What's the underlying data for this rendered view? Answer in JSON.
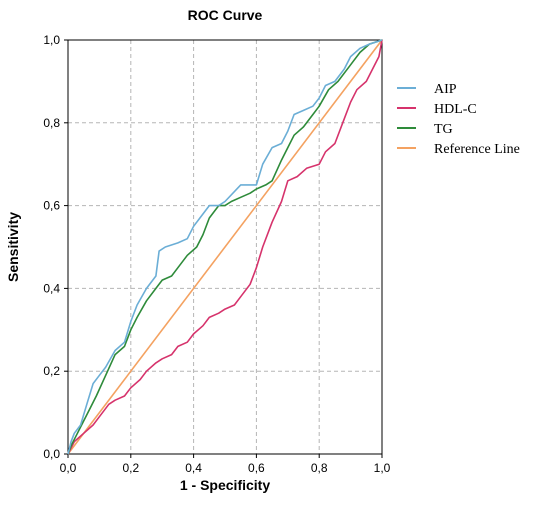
{
  "chart_data": {
    "type": "line",
    "title": "ROC Curve",
    "xlabel": "1 - Specificity",
    "ylabel": "Sensitivity",
    "xlim": [
      0,
      1
    ],
    "ylim": [
      0,
      1
    ],
    "x_ticks": [
      "0,0",
      "0,2",
      "0,4",
      "0,6",
      "0,8",
      "1,0"
    ],
    "y_ticks": [
      "0,0",
      "0,2",
      "0,4",
      "0,6",
      "0,8",
      "1,0"
    ],
    "grid": true,
    "legend_position": "right",
    "series": [
      {
        "name": "AIP",
        "color": "#6baed6",
        "points": [
          [
            0,
            0
          ],
          [
            0.01,
            0.03
          ],
          [
            0.02,
            0.05
          ],
          [
            0.04,
            0.07
          ],
          [
            0.06,
            0.12
          ],
          [
            0.08,
            0.17
          ],
          [
            0.1,
            0.19
          ],
          [
            0.12,
            0.21
          ],
          [
            0.15,
            0.25
          ],
          [
            0.18,
            0.27
          ],
          [
            0.2,
            0.32
          ],
          [
            0.22,
            0.36
          ],
          [
            0.25,
            0.4
          ],
          [
            0.28,
            0.43
          ],
          [
            0.29,
            0.49
          ],
          [
            0.31,
            0.5
          ],
          [
            0.35,
            0.51
          ],
          [
            0.38,
            0.52
          ],
          [
            0.4,
            0.55
          ],
          [
            0.42,
            0.57
          ],
          [
            0.45,
            0.6
          ],
          [
            0.48,
            0.6
          ],
          [
            0.5,
            0.61
          ],
          [
            0.55,
            0.65
          ],
          [
            0.6,
            0.65
          ],
          [
            0.62,
            0.7
          ],
          [
            0.65,
            0.74
          ],
          [
            0.68,
            0.75
          ],
          [
            0.7,
            0.78
          ],
          [
            0.72,
            0.82
          ],
          [
            0.75,
            0.83
          ],
          [
            0.78,
            0.84
          ],
          [
            0.8,
            0.86
          ],
          [
            0.82,
            0.89
          ],
          [
            0.85,
            0.9
          ],
          [
            0.88,
            0.93
          ],
          [
            0.9,
            0.96
          ],
          [
            0.93,
            0.98
          ],
          [
            0.96,
            0.99
          ],
          [
            1,
            1
          ]
        ]
      },
      {
        "name": "HDL-C",
        "color": "#d6336c",
        "points": [
          [
            0,
            0
          ],
          [
            0.02,
            0.03
          ],
          [
            0.05,
            0.05
          ],
          [
            0.08,
            0.07
          ],
          [
            0.1,
            0.09
          ],
          [
            0.13,
            0.12
          ],
          [
            0.15,
            0.13
          ],
          [
            0.18,
            0.14
          ],
          [
            0.2,
            0.16
          ],
          [
            0.23,
            0.18
          ],
          [
            0.25,
            0.2
          ],
          [
            0.28,
            0.22
          ],
          [
            0.3,
            0.23
          ],
          [
            0.33,
            0.24
          ],
          [
            0.35,
            0.26
          ],
          [
            0.38,
            0.27
          ],
          [
            0.4,
            0.29
          ],
          [
            0.43,
            0.31
          ],
          [
            0.45,
            0.33
          ],
          [
            0.48,
            0.34
          ],
          [
            0.5,
            0.35
          ],
          [
            0.53,
            0.36
          ],
          [
            0.55,
            0.38
          ],
          [
            0.58,
            0.41
          ],
          [
            0.6,
            0.45
          ],
          [
            0.62,
            0.5
          ],
          [
            0.65,
            0.56
          ],
          [
            0.68,
            0.61
          ],
          [
            0.7,
            0.66
          ],
          [
            0.73,
            0.67
          ],
          [
            0.76,
            0.69
          ],
          [
            0.8,
            0.7
          ],
          [
            0.82,
            0.73
          ],
          [
            0.85,
            0.75
          ],
          [
            0.88,
            0.81
          ],
          [
            0.9,
            0.85
          ],
          [
            0.92,
            0.88
          ],
          [
            0.95,
            0.9
          ],
          [
            0.97,
            0.93
          ],
          [
            0.99,
            0.96
          ],
          [
            1,
            1
          ]
        ]
      },
      {
        "name": "TG",
        "color": "#2e8b3a",
        "points": [
          [
            0,
            0
          ],
          [
            0.01,
            0.02
          ],
          [
            0.03,
            0.05
          ],
          [
            0.05,
            0.08
          ],
          [
            0.07,
            0.11
          ],
          [
            0.09,
            0.14
          ],
          [
            0.12,
            0.19
          ],
          [
            0.15,
            0.24
          ],
          [
            0.18,
            0.26
          ],
          [
            0.2,
            0.3
          ],
          [
            0.22,
            0.33
          ],
          [
            0.25,
            0.37
          ],
          [
            0.28,
            0.4
          ],
          [
            0.3,
            0.42
          ],
          [
            0.33,
            0.43
          ],
          [
            0.35,
            0.45
          ],
          [
            0.38,
            0.48
          ],
          [
            0.41,
            0.5
          ],
          [
            0.43,
            0.53
          ],
          [
            0.45,
            0.57
          ],
          [
            0.48,
            0.6
          ],
          [
            0.5,
            0.6
          ],
          [
            0.52,
            0.61
          ],
          [
            0.55,
            0.62
          ],
          [
            0.58,
            0.63
          ],
          [
            0.6,
            0.64
          ],
          [
            0.63,
            0.65
          ],
          [
            0.65,
            0.66
          ],
          [
            0.68,
            0.71
          ],
          [
            0.7,
            0.74
          ],
          [
            0.72,
            0.77
          ],
          [
            0.75,
            0.79
          ],
          [
            0.78,
            0.82
          ],
          [
            0.8,
            0.84
          ],
          [
            0.83,
            0.88
          ],
          [
            0.86,
            0.9
          ],
          [
            0.9,
            0.94
          ],
          [
            0.93,
            0.97
          ],
          [
            0.96,
            0.99
          ],
          [
            1,
            1
          ]
        ]
      },
      {
        "name": "Reference Line",
        "color": "#f4a261",
        "points": [
          [
            0,
            0
          ],
          [
            1,
            1
          ]
        ]
      }
    ]
  }
}
